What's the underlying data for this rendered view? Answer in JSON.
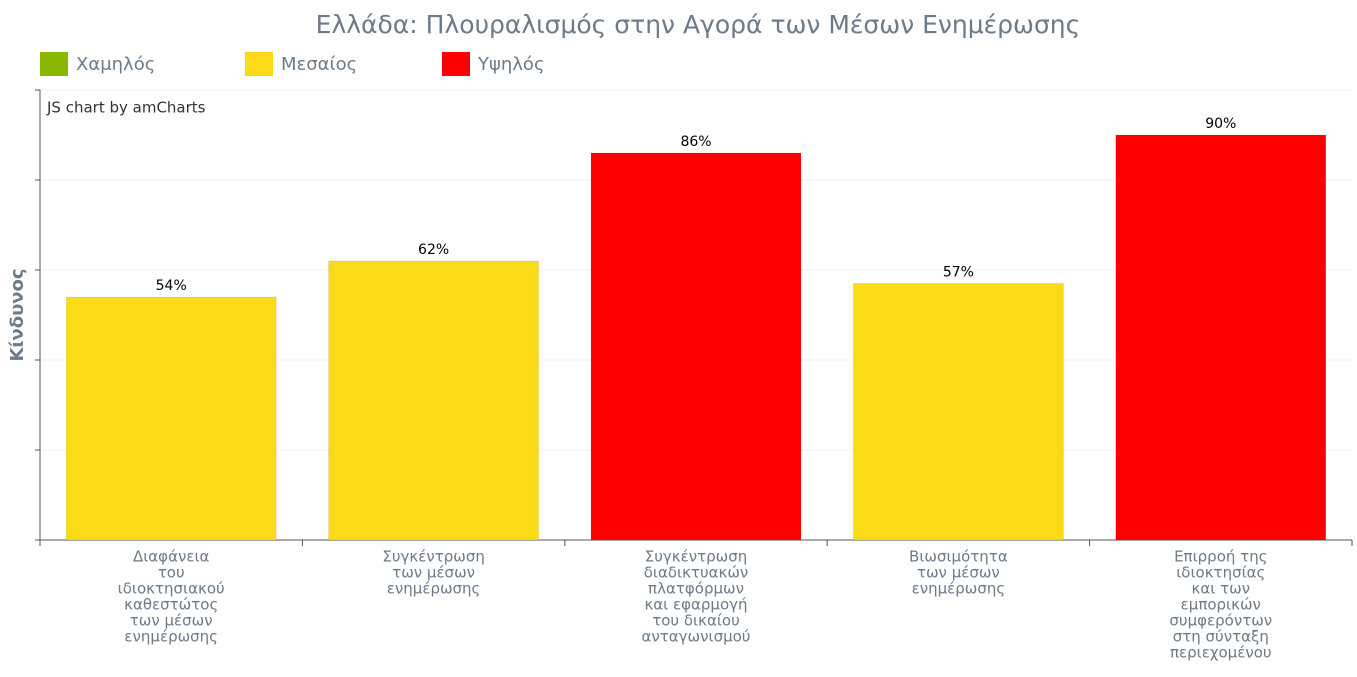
{
  "chart_data": {
    "type": "bar",
    "title": "Ελλάδα: Πλουραλισμός στην Αγορά των Μέσων Ενημέρωσης",
    "y_label": "Κίνδυνος",
    "credit": "JS chart by amCharts",
    "series": [
      {
        "name": "Χαμηλός",
        "color": "#8ab800"
      },
      {
        "name": "Μεσαίος",
        "color": "#fbdb17"
      },
      {
        "name": "Υψηλός",
        "color": "#ff0000"
      }
    ],
    "categories": [
      [
        "Διαφάνεια",
        "του",
        "ιδιοκτησιακού",
        "καθεστώτος",
        "των μέσων",
        "ενημέρωσης"
      ],
      [
        "Συγκέντρωση",
        "των μέσων",
        "ενημέρωσης"
      ],
      [
        "Συγκέντρωση",
        "διαδικτυακών",
        "πλατφόρμων",
        "και εφαρμογή",
        "του δικαίου",
        "ανταγωνισμού"
      ],
      [
        "Βιωσιμότητα",
        "των μέσων",
        "ενημέρωσης"
      ],
      [
        "Επιρροή της",
        "ιδιοκτησίας",
        "και των",
        "εμπορικών",
        "συμφερόντων",
        "στη σύνταξη",
        "περιεχομένου"
      ]
    ],
    "values": [
      54,
      62,
      86,
      57,
      90
    ],
    "value_labels": [
      "54%",
      "62%",
      "86%",
      "57%",
      "90%"
    ],
    "colors": [
      "#fbdb17",
      "#fbdb17",
      "#ff0000",
      "#fbdb17",
      "#ff0000"
    ],
    "ylim": [
      0,
      100
    ],
    "yticks": [
      0,
      20,
      40,
      60,
      80,
      100
    ],
    "grid": true
  }
}
